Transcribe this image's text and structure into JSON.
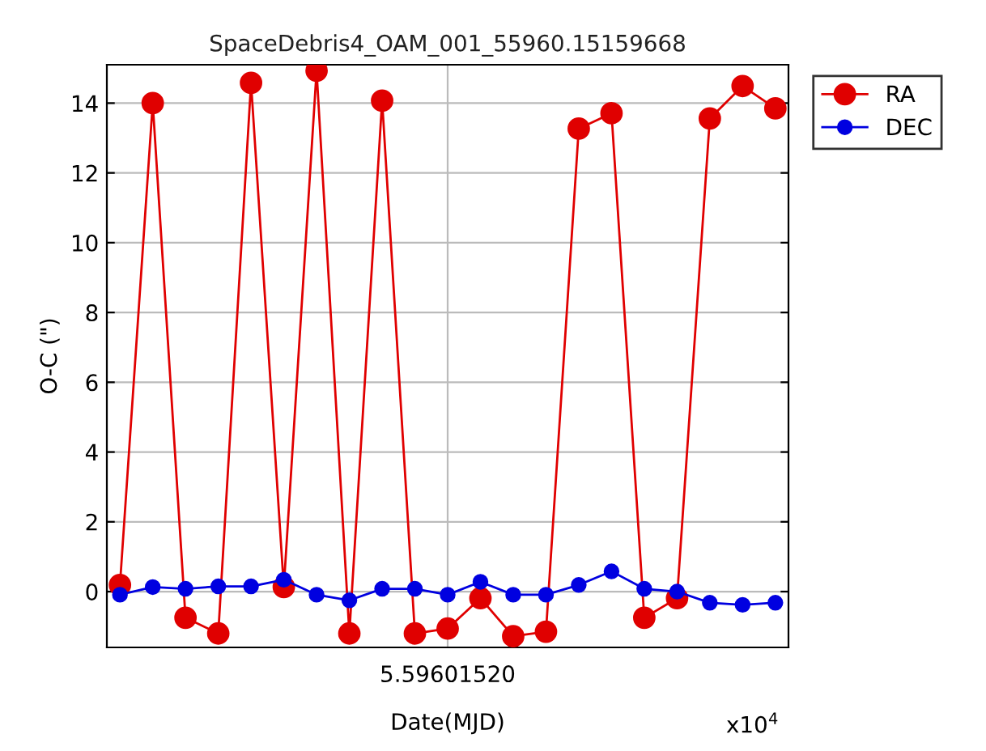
{
  "chart_data": {
    "type": "line",
    "title": "SpaceDebris4_OAM_001_55960.15159668",
    "xlabel": "Date(MJD)",
    "ylabel": "O-C (\")",
    "annotations": [
      "5.59601520",
      "x10$^{4}$"
    ],
    "categories": [
      null,
      null,
      null,
      null,
      null,
      null,
      null,
      null,
      null,
      null,
      null,
      null,
      null,
      null,
      null,
      null,
      null,
      null,
      null,
      null,
      null
    ],
    "series": [
      {
        "name": "RA",
        "color": "#e00000",
        "values": [
          0.19,
          14.0,
          -0.75,
          -1.2,
          14.58,
          0.13,
          14.93,
          -1.2,
          14.07,
          -1.2,
          -1.06,
          -0.19,
          -1.28,
          -1.15,
          13.27,
          13.71,
          -0.75,
          -0.19,
          13.56,
          14.49,
          13.85
        ]
      },
      {
        "name": "DEC",
        "color": "#0000e0",
        "values": [
          -0.09,
          0.13,
          0.08,
          0.15,
          0.15,
          0.34,
          -0.09,
          -0.25,
          0.08,
          0.08,
          -0.09,
          0.28,
          -0.09,
          -0.09,
          0.19,
          0.58,
          0.08,
          0.0,
          -0.32,
          -0.38,
          -0.32
        ]
      }
    ],
    "ylim": [
      -1.6,
      15.1
    ],
    "yticks": [
      0,
      2,
      4,
      6,
      8,
      10,
      12,
      14
    ],
    "grid": true,
    "legend": "top right",
    "marker": "circle",
    "line_style": "solid"
  }
}
